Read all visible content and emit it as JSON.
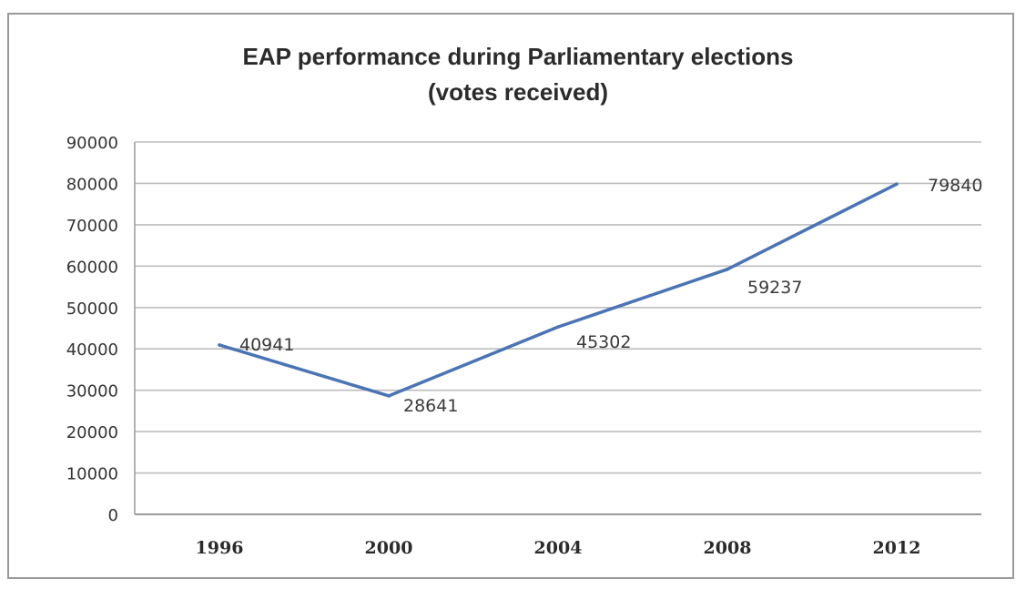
{
  "chart_data": {
    "type": "line",
    "title": [
      "EAP performance during Parliamentary elections",
      "(votes received)"
    ],
    "categories": [
      "1996",
      "2000",
      "2004",
      "2008",
      "2012"
    ],
    "series": [
      {
        "values": [
          40941,
          28641,
          45302,
          59237,
          79840
        ]
      }
    ],
    "data_labels": [
      "40941",
      "28641",
      "45302",
      "59237",
      "79840"
    ],
    "ylim": [
      0,
      90000
    ],
    "yticks": [
      "0",
      "10000",
      "20000",
      "30000",
      "40000",
      "50000",
      "60000",
      "70000",
      "80000",
      "90000"
    ],
    "grid": true,
    "legend": "none",
    "colors": {
      "line": "#4a74b5",
      "grid": "#bdbdbd",
      "axis": "#9a9a9a"
    }
  }
}
